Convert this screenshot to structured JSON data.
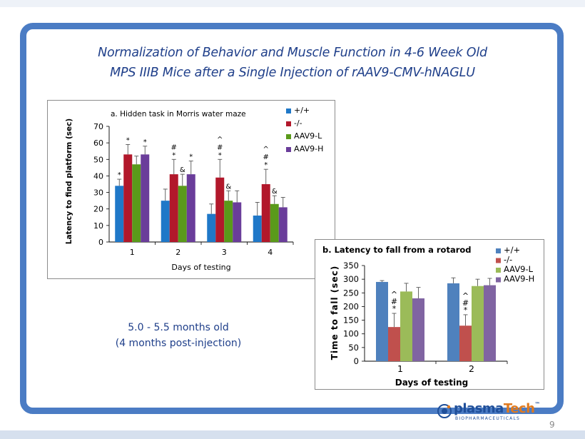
{
  "slide": {
    "title_line1": "Normalization of Behavior and Muscle Function in 4-6 Week Old",
    "title_line2": "MPS IIIB Mice after a Single Injection of rAAV9-CMV-hNAGLU",
    "age_line1": "5.0 - 5.5 months old",
    "age_line2": "(4 months post-injection)",
    "page_number": "9",
    "colors": {
      "frame": "#4b7cc4",
      "title": "#1f3f8a"
    }
  },
  "logo": {
    "word_main": "plasma",
    "word_accent": "Tech",
    "trademark": "™",
    "subtitle": "BIOPHARMACEUTICALS",
    "icon_name": "plasmatech-logo-icon",
    "colors": {
      "main": "#1f4f9a",
      "accent": "#e07a1f"
    }
  },
  "chart_data": [
    {
      "type": "bar",
      "title": "a. Hidden task in Morris water maze",
      "xlabel": "Days of testing",
      "ylabel": "Latency to find platform (sec)",
      "ylim": [
        0,
        70
      ],
      "yticks": [
        0,
        10,
        20,
        30,
        40,
        50,
        60,
        70
      ],
      "categories": [
        "1",
        "2",
        "3",
        "4"
      ],
      "legend_position": "top-right",
      "series": [
        {
          "name": "+/+",
          "color": "#1f78c8",
          "values": [
            34,
            25,
            17,
            16
          ],
          "errors": [
            4,
            7,
            6,
            8
          ]
        },
        {
          "name": "-/-",
          "color": "#b2182b",
          "values": [
            53,
            41,
            39,
            35
          ],
          "errors": [
            6,
            9,
            11,
            9
          ]
        },
        {
          "name": "AAV9-L",
          "color": "#5a9a1a",
          "values": [
            47,
            34,
            25,
            23
          ],
          "errors": [
            5,
            7,
            6,
            5
          ]
        },
        {
          "name": "AAV9-H",
          "color": "#6a3d9a",
          "values": [
            53,
            41,
            24,
            21
          ],
          "errors": [
            5,
            8,
            7,
            6
          ]
        }
      ],
      "annotations": [
        {
          "category": 0,
          "series": 0,
          "text": "*"
        },
        {
          "category": 0,
          "series": 1,
          "text": "*"
        },
        {
          "category": 0,
          "series": 3,
          "text": "*"
        },
        {
          "category": 1,
          "series": 1,
          "text": "#\n*"
        },
        {
          "category": 1,
          "series": 2,
          "text": "&"
        },
        {
          "category": 1,
          "series": 3,
          "text": "*"
        },
        {
          "category": 2,
          "series": 1,
          "text": "^\n#\n*"
        },
        {
          "category": 2,
          "series": 2,
          "text": "&"
        },
        {
          "category": 3,
          "series": 1,
          "text": "^\n#\n*"
        },
        {
          "category": 3,
          "series": 2,
          "text": "&"
        }
      ]
    },
    {
      "type": "bar",
      "title": "b. Latency to fall from a rotarod",
      "xlabel": "Days of testing",
      "ylabel": "Time to fall (sec)",
      "ylim": [
        0,
        350
      ],
      "yticks": [
        0,
        50,
        100,
        150,
        200,
        250,
        300,
        350
      ],
      "categories": [
        "1",
        "2"
      ],
      "legend_position": "top-right",
      "series": [
        {
          "name": "+/+",
          "color": "#4f81bd",
          "values": [
            290,
            285
          ],
          "errors": [
            5,
            20
          ]
        },
        {
          "name": "-/-",
          "color": "#c0504d",
          "values": [
            125,
            130
          ],
          "errors": [
            50,
            40
          ]
        },
        {
          "name": "AAV9-L",
          "color": "#9bbb59",
          "values": [
            255,
            275
          ],
          "errors": [
            30,
            25
          ]
        },
        {
          "name": "AAV9-H",
          "color": "#8064a2",
          "values": [
            230,
            278
          ],
          "errors": [
            40,
            25
          ]
        }
      ],
      "annotations": [
        {
          "category": 0,
          "series": 1,
          "text": "^\n#\n*"
        },
        {
          "category": 1,
          "series": 1,
          "text": "^\n#\n*"
        }
      ]
    }
  ]
}
